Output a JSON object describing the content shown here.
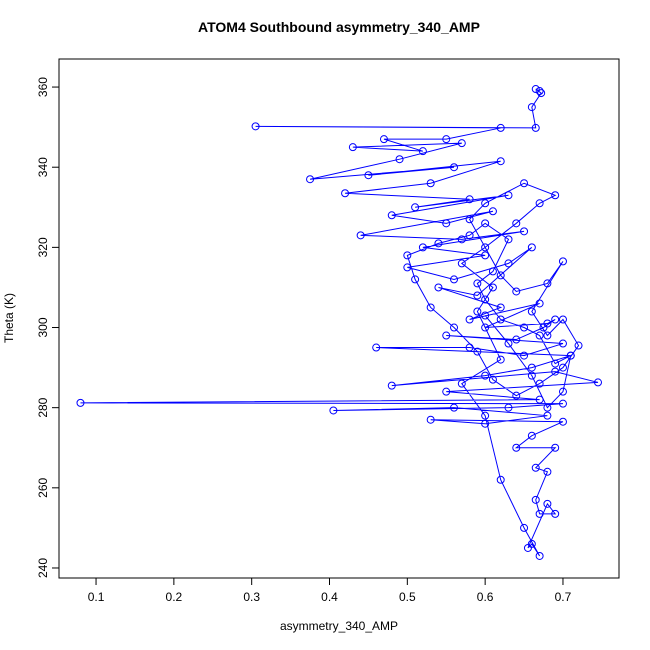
{
  "chart_data": {
    "type": "scatter",
    "lines": true,
    "title": "ATOM4 Southbound asymmetry_340_AMP",
    "x_label": "asymmetry_340_AMP",
    "y_label": "Theta (K)",
    "color": "#0000ff",
    "xlim": [
      0.0524,
      0.772
    ],
    "ylim": [
      237.5,
      367
    ],
    "xticks": [
      0.1,
      0.2,
      0.3,
      0.4,
      0.5,
      0.6,
      0.7
    ],
    "yticks": [
      240,
      260,
      280,
      300,
      320,
      340,
      360
    ],
    "x": [
      0.67,
      0.665,
      0.672,
      0.66,
      0.665,
      0.305,
      0.62,
      0.55,
      0.47,
      0.52,
      0.43,
      0.57,
      0.49,
      0.375,
      0.56,
      0.45,
      0.62,
      0.53,
      0.42,
      0.58,
      0.51,
      0.63,
      0.48,
      0.55,
      0.61,
      0.44,
      0.57,
      0.65,
      0.52,
      0.6,
      0.5,
      0.56,
      0.63,
      0.66,
      0.59,
      0.54,
      0.62,
      0.58,
      0.67,
      0.6,
      0.68,
      0.69,
      0.675,
      0.64,
      0.55,
      0.7,
      0.65,
      0.58,
      0.46,
      0.71,
      0.66,
      0.6,
      0.48,
      0.69,
      0.745,
      0.55,
      0.67,
      0.08,
      0.7,
      0.63,
      0.405,
      0.56,
      0.68,
      0.6,
      0.53,
      0.7,
      0.66,
      0.64,
      0.69,
      0.665,
      0.68,
      0.665,
      0.67,
      0.69,
      0.68,
      0.655,
      0.66,
      0.67,
      0.65,
      0.62,
      0.6,
      0.57,
      0.62,
      0.59,
      0.61,
      0.57,
      0.6,
      0.64,
      0.67,
      0.69,
      0.65,
      0.6,
      0.58,
      0.62,
      0.64,
      0.68,
      0.7,
      0.66,
      0.68,
      0.7,
      0.72,
      0.7,
      0.67,
      0.64,
      0.61,
      0.59,
      0.56,
      0.53,
      0.51,
      0.5,
      0.54,
      0.58,
      0.6,
      0.63,
      0.61,
      0.59,
      0.6,
      0.62,
      0.65,
      0.67,
      0.69,
      0.71,
      0.7,
      0.68,
      0.66,
      0.63,
      0.6
    ],
    "y": [
      359,
      359.5,
      358.5,
      355,
      349.8,
      350.2,
      349.8,
      347,
      347,
      344,
      345,
      346,
      342,
      337,
      340,
      338,
      341.5,
      336,
      333.5,
      332,
      330,
      333,
      328,
      326,
      329,
      323,
      322,
      324,
      320,
      318,
      315,
      312,
      316,
      320,
      308,
      310,
      305,
      302,
      306,
      300,
      301,
      302,
      300,
      297,
      298,
      296,
      293,
      295,
      295,
      293,
      290,
      288,
      285.5,
      289,
      286.3,
      284,
      282,
      281.2,
      281,
      280,
      279.3,
      280,
      278,
      276,
      277,
      276.5,
      273,
      270,
      270,
      265,
      264,
      257,
      253.5,
      253.5,
      256,
      245,
      246,
      243,
      250,
      262,
      278,
      286,
      292,
      304,
      310,
      316,
      320,
      326,
      331,
      333,
      336,
      331,
      327,
      313,
      309,
      311,
      316.5,
      304,
      298,
      302,
      295.5,
      290,
      286,
      283,
      287,
      294,
      300,
      305,
      312,
      318,
      321,
      323,
      326,
      322,
      314,
      311,
      307,
      302,
      300,
      298,
      291,
      293,
      284,
      280,
      288,
      296,
      303
    ]
  }
}
